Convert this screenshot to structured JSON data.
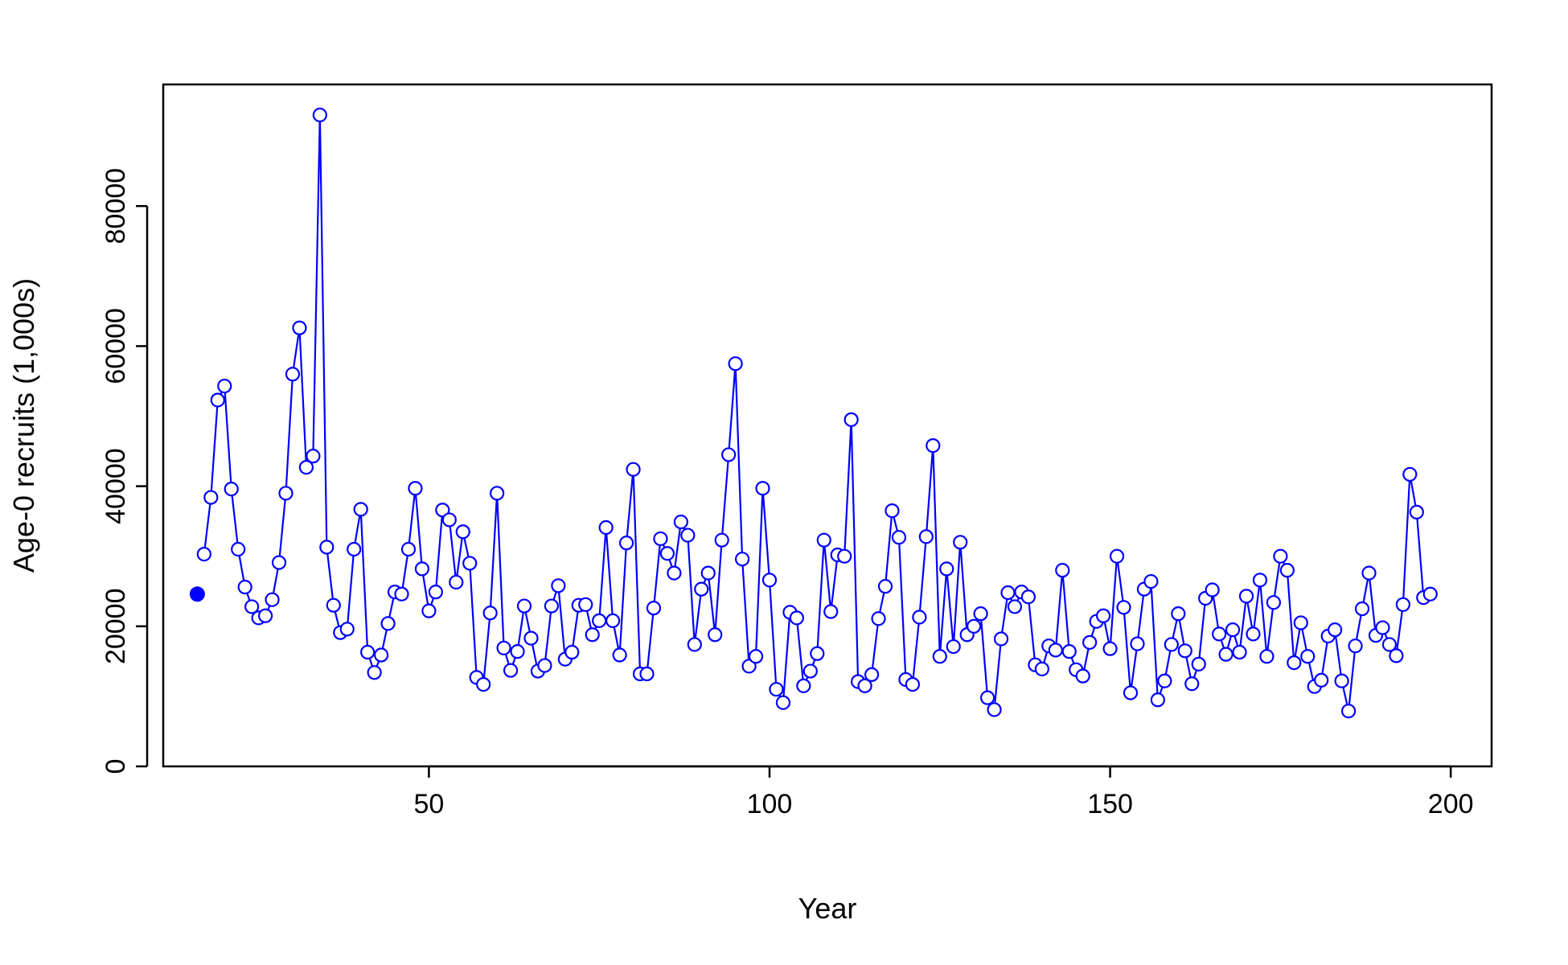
{
  "chart_data": {
    "type": "line",
    "title": "",
    "xlabel": "Year",
    "ylabel": "Age-0 recruits (1,000s)",
    "xlim": [
      11,
      206
    ],
    "ylim": [
      0,
      93000
    ],
    "x_ticks": [
      50,
      100,
      150,
      200
    ],
    "y_ticks": [
      0,
      20000,
      40000,
      60000,
      80000
    ],
    "x_tick_labels": [
      "50",
      "100",
      "150",
      "200"
    ],
    "y_tick_labels": [
      "0",
      "20000",
      "40000",
      "60000",
      "80000"
    ],
    "grid": false,
    "legend": "none",
    "color": "#0000ff",
    "initial_point": {
      "x": 16,
      "y": 24600
    },
    "series": [
      {
        "x": [
          17,
          18,
          19,
          20,
          21,
          22,
          23,
          24,
          25,
          26,
          27,
          28,
          29,
          30,
          31,
          32,
          33,
          34,
          35,
          36,
          37,
          38,
          39,
          40,
          41,
          42,
          43,
          44,
          45,
          46,
          47,
          48,
          49,
          50,
          51,
          52,
          53,
          54,
          55,
          56,
          57,
          58,
          59,
          60,
          61,
          62,
          63,
          64,
          65,
          66,
          67,
          68,
          69,
          70,
          71,
          72,
          73,
          74,
          75,
          76,
          77,
          78,
          79,
          80,
          81,
          82,
          83,
          84,
          85,
          86,
          87,
          88,
          89,
          90,
          91,
          92,
          93,
          94,
          95,
          96,
          97,
          98,
          99,
          100,
          101,
          102,
          103,
          104,
          105,
          106,
          107,
          108,
          109,
          110,
          111,
          112,
          113,
          114,
          115,
          116,
          117,
          118,
          119,
          120,
          121,
          122,
          123,
          124,
          125,
          126,
          127,
          128,
          129,
          130,
          131,
          132,
          133,
          134,
          135,
          136,
          137,
          138,
          139,
          140,
          141,
          142,
          143,
          144,
          145,
          146,
          147,
          148,
          149,
          150,
          151,
          152,
          153,
          154,
          155,
          156,
          157,
          158,
          159,
          160,
          161,
          162,
          163,
          164,
          165,
          166,
          167,
          168,
          169,
          170,
          171,
          172,
          173,
          174,
          175,
          176,
          177,
          178,
          179,
          180,
          181,
          182,
          183,
          184,
          185,
          186,
          187,
          188,
          189,
          190,
          191,
          192,
          193,
          194,
          195,
          196,
          197
        ],
        "values": [
          30300,
          38400,
          52300,
          54300,
          39600,
          31000,
          25600,
          22800,
          21200,
          21500,
          23800,
          29100,
          39000,
          56000,
          62600,
          42700,
          44300,
          93000,
          31300,
          23000,
          19100,
          19600,
          31000,
          36700,
          16300,
          13400,
          15900,
          20400,
          24900,
          24600,
          31000,
          39700,
          28200,
          22200,
          24900,
          36600,
          35200,
          26300,
          33500,
          29000,
          12700,
          11700,
          21900,
          39000,
          16900,
          13700,
          16400,
          22900,
          18300,
          13600,
          14400,
          22900,
          25800,
          15300,
          16300,
          23000,
          23100,
          18800,
          20800,
          34100,
          20800,
          15900,
          31900,
          42400,
          13200,
          13200,
          22600,
          32500,
          30400,
          27600,
          34900,
          33000,
          17400,
          25300,
          27600,
          18800,
          32300,
          44500,
          57500,
          29600,
          14300,
          15700,
          39700,
          26600,
          11000,
          9100,
          22000,
          21200,
          11500,
          13600,
          16100,
          32300,
          22100,
          30200,
          30000,
          49500,
          12100,
          11500,
          13100,
          21100,
          25700,
          36500,
          32700,
          12400,
          11700,
          21300,
          32800,
          45800,
          15700,
          28200,
          17100,
          32000,
          18800,
          20000,
          21800,
          9800,
          8100,
          18200,
          24800,
          22800,
          24900,
          24200,
          14500,
          13900,
          17200,
          16600,
          28000,
          16400,
          13800,
          12900,
          17700,
          20700,
          21500,
          16800,
          30000,
          22700,
          10500,
          17500,
          25300,
          26400,
          9500,
          12200,
          17400,
          21800,
          16500,
          11800,
          14600,
          24000,
          25200,
          18900,
          16000,
          19500,
          16300,
          24300,
          18900,
          26600,
          15700,
          23400,
          30000,
          28000,
          14800,
          20500,
          15700,
          11400,
          12300,
          18600,
          19500,
          12200,
          7900,
          17200,
          22500,
          27600,
          18700,
          19800,
          17400,
          15800,
          23100,
          41700,
          36300,
          24100,
          24600
        ]
      }
    ]
  }
}
